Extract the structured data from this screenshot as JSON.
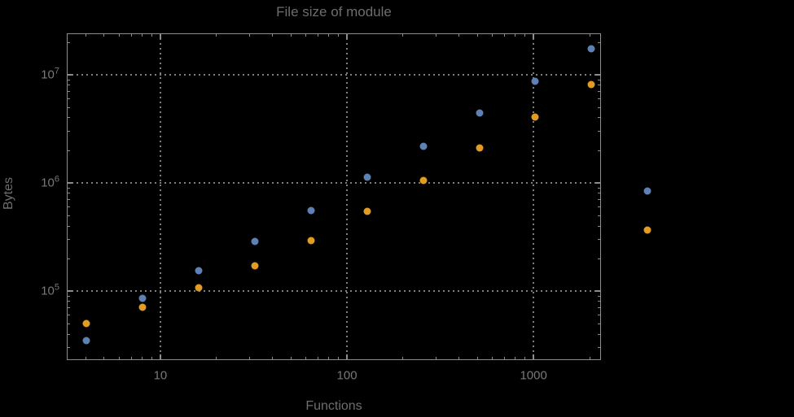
{
  "title": "File size of module",
  "chart_data": {
    "type": "scatter",
    "title": "File size of module",
    "xlabel": "Functions",
    "ylabel": "Bytes",
    "xscale": "log",
    "yscale": "log",
    "xlim": [
      3.15,
      2300
    ],
    "ylim": [
      23000,
      24200000
    ],
    "grid": "dotted lines at decade ticks only",
    "legend": "none",
    "plot_range_clipping": false,
    "x_tick_labels": [
      {
        "value": 10,
        "label": "10"
      },
      {
        "value": 100,
        "label": "100"
      },
      {
        "value": 1000,
        "label": "1000"
      }
    ],
    "y_tick_labels": [
      {
        "value": 100000,
        "mantissa": "10",
        "exponent": "5"
      },
      {
        "value": 1000000,
        "mantissa": "10",
        "exponent": "6"
      },
      {
        "value": 10000000,
        "mantissa": "10",
        "exponent": "7"
      }
    ],
    "x": [
      4,
      8,
      16,
      32,
      64,
      128,
      256,
      512,
      1024,
      2048,
      4096
    ],
    "series": [
      {
        "name": "blue",
        "color": "#5E81B5",
        "values": [
          35000,
          86000,
          155000,
          290000,
          560000,
          1130000,
          2200000,
          4400000,
          8700000,
          17500000,
          840000
        ]
      },
      {
        "name": "orange",
        "color": "#E19C24",
        "values": [
          50000,
          71000,
          107000,
          170000,
          292000,
          550000,
          1050000,
          2100000,
          4100000,
          8200000,
          370000
        ]
      }
    ]
  },
  "colors": {
    "background": "#000000",
    "frame": "#8c8c8c",
    "grid": "#7d7d7d",
    "title_text": "#6d6d6d",
    "tick_text": "#787878",
    "series_blue": "#5E81B5",
    "series_orange": "#E19C24"
  }
}
